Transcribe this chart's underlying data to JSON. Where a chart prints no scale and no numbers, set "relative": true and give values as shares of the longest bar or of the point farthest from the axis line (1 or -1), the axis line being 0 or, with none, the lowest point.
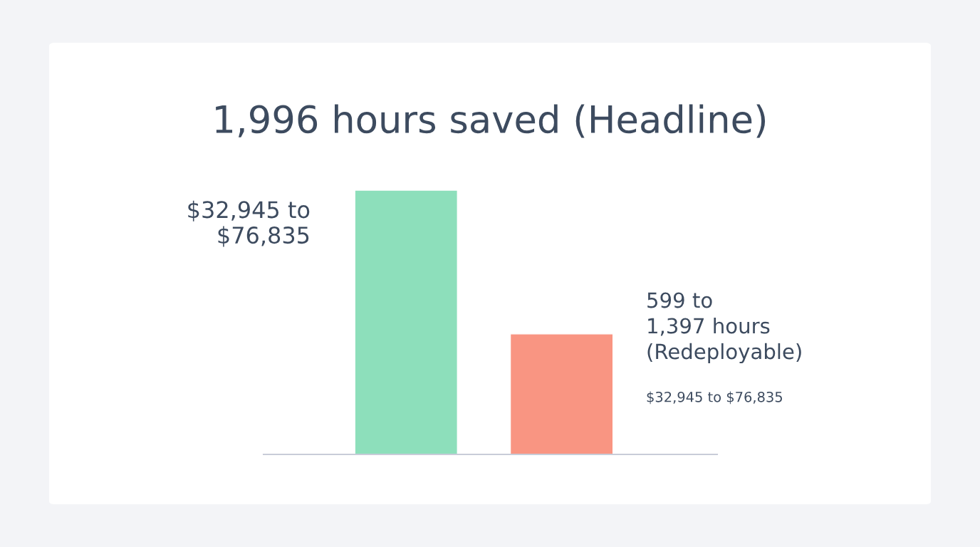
{
  "chart_data": {
    "type": "bar",
    "title": "1,996 hours saved (Headline)",
    "categories": [
      null,
      null
    ],
    "values": [
      1,
      0.456
    ],
    "colors": [
      "#8ddfbb",
      "#f99582"
    ],
    "relative": true,
    "annotations": [
      "$32,945 to\n$76,835",
      "599 to\n1,397 hours\n(Redeployable)",
      "$32,945 to $76,835"
    ]
  }
}
